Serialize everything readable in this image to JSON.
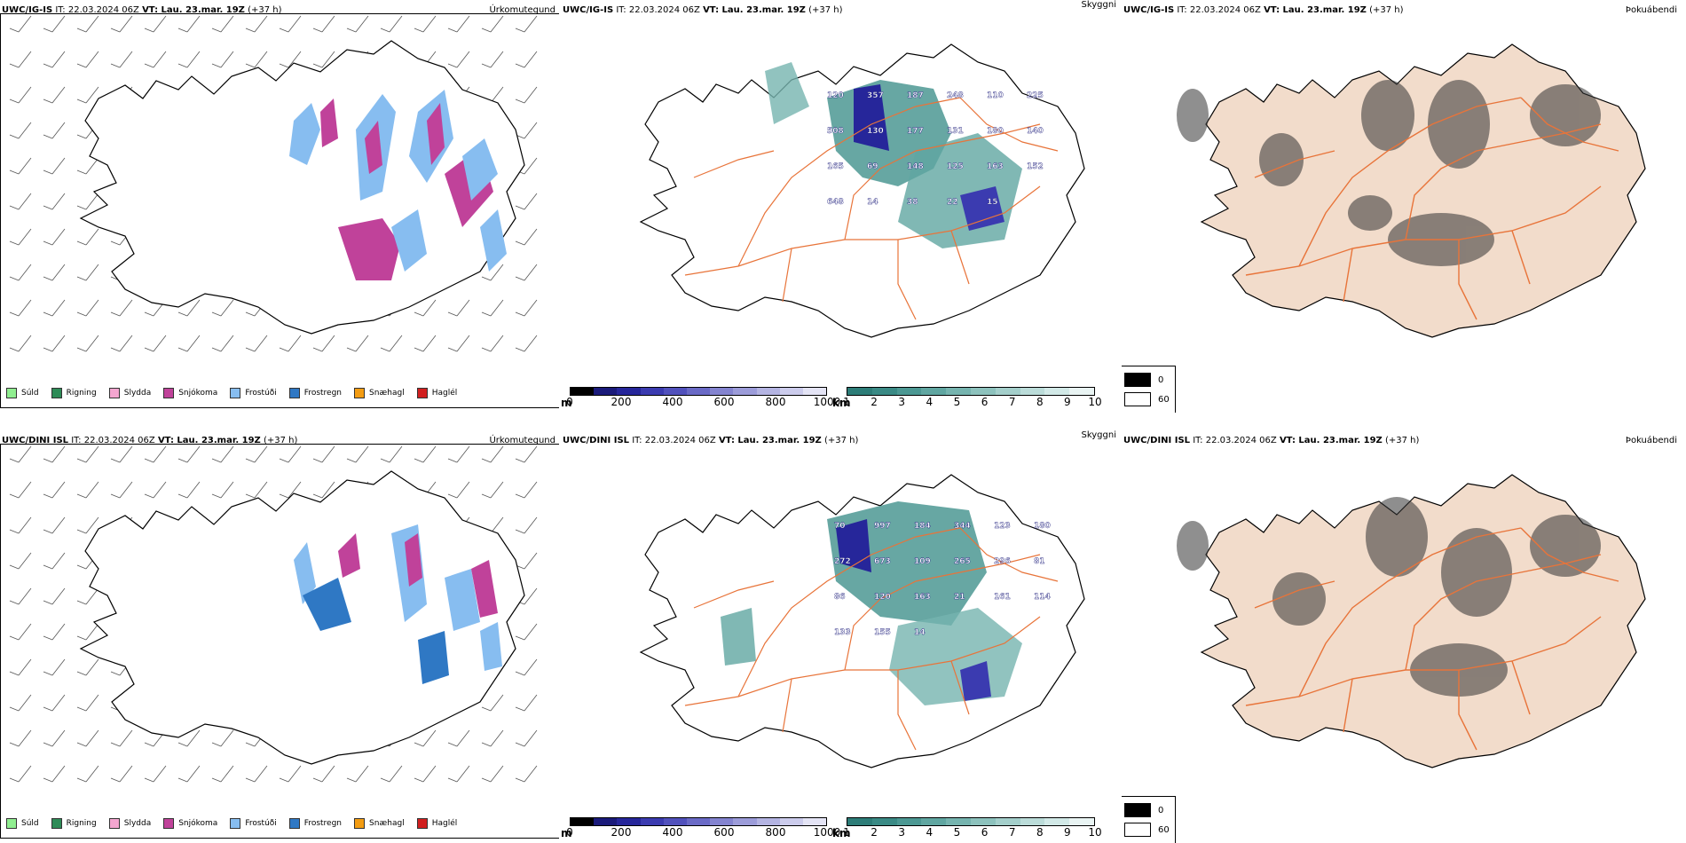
{
  "rows": [
    {
      "precip": {
        "model": "UWC/IG-IS",
        "it": "IT: 22.03.2024 06Z",
        "vt": "VT: Lau. 23.mar. 19Z",
        "lead": "(+37 h)",
        "title": "Úrkomutegund"
      },
      "cloud": {
        "model": "UWC/IG-IS",
        "it": "IT: 22.03.2024 06Z",
        "vt": "VT: Lau. 23.mar. 19Z",
        "lead": "(+37 h)",
        "title": "Skyggni"
      },
      "fog": {
        "model": "UWC/IG-IS",
        "it": "IT: 22.03.2024 06Z",
        "vt": "VT: Lau. 23.mar. 19Z",
        "lead": "(+37 h)",
        "title": "Þokuábendi"
      },
      "labels": [
        "120",
        "357",
        "187",
        "248",
        "110",
        "225",
        "508",
        "130",
        "177",
        "131",
        "180",
        "140",
        "165",
        "69",
        "148",
        "125",
        "163",
        "152",
        "648",
        "14",
        "38",
        "22",
        "15"
      ]
    },
    {
      "precip": {
        "model": "UWC/DINI ISL",
        "it": "IT: 22.03.2024 06Z",
        "vt": "VT: Lau. 23.mar. 19Z",
        "lead": "(+37 h)",
        "title": "Úrkomutegund"
      },
      "cloud": {
        "model": "UWC/DINI ISL",
        "it": "IT: 22.03.2024 06Z",
        "vt": "VT: Lau. 23.mar. 19Z",
        "lead": "(+37 h)",
        "title": "Skyggni"
      },
      "fog": {
        "model": "UWC/DINI ISL",
        "it": "IT: 22.03.2024 06Z",
        "vt": "VT: Lau. 23.mar. 19Z",
        "lead": "(+37 h)",
        "title": "Þokuábendi"
      },
      "labels": [
        "70",
        "997",
        "184",
        "344",
        "123",
        "180",
        "272",
        "673",
        "109",
        "265",
        "296",
        "81",
        "86",
        "120",
        "163",
        "21",
        "161",
        "114",
        "133",
        "155",
        "14"
      ]
    }
  ],
  "precip_legend": [
    {
      "label": "Súld",
      "color": "#90ee90"
    },
    {
      "label": "Rigning",
      "color": "#2e8b57"
    },
    {
      "label": "Slydda",
      "color": "#f4a6d0"
    },
    {
      "label": "Snjókoma",
      "color": "#c0429a"
    },
    {
      "label": "Frostúði",
      "color": "#87bdf0"
    },
    {
      "label": "Frostregn",
      "color": "#2f78c4"
    },
    {
      "label": "Snæhagl",
      "color": "#f39c12"
    },
    {
      "label": "Haglél",
      "color": "#d11f1f"
    }
  ],
  "base_bar": {
    "unit": "m",
    "ticks": [
      "0",
      "200",
      "400",
      "600",
      "800",
      "1000"
    ],
    "colors": [
      "#000000",
      "#1a1a7a",
      "#26269a",
      "#3b3bb0",
      "#5151bc",
      "#6a6ac6",
      "#8484d0",
      "#9c9cd9",
      "#b4b4e2",
      "#ccccec",
      "#e4e4f5"
    ]
  },
  "vis_bar": {
    "unit": "km",
    "ticks": [
      "1",
      "2",
      "3",
      "4",
      "5",
      "6",
      "7",
      "8",
      "9",
      "10"
    ],
    "colors": [
      "#2d7d78",
      "#3a8a85",
      "#4c9893",
      "#60a6a1",
      "#76b4af",
      "#8dc2bd",
      "#a4cfcb",
      "#bbdcd9",
      "#d2e9e7",
      "#e9f4f3"
    ]
  },
  "fog_scale": [
    {
      "label": "0",
      "color": "#000000"
    },
    {
      "label": "60",
      "color": "#ffffff"
    }
  ],
  "colors": {
    "land": "#f2dccb",
    "roads": "#e8743a",
    "rivers": "#7f8fe8",
    "coast": "#000000",
    "wind": "#555555"
  }
}
